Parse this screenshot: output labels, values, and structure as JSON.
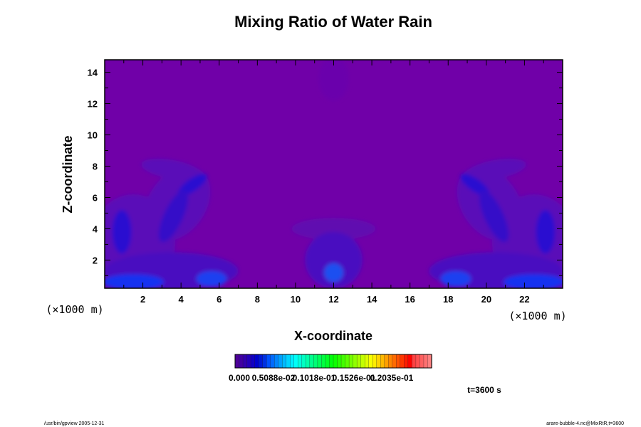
{
  "chart_data": {
    "type": "heatmap",
    "title": "Mixing Ratio of Water Rain",
    "xlabel": "X-coordinate",
    "ylabel": "Z-coordinate",
    "x_unit_label": "(×1000 m)",
    "y_unit_label": "(×1000 m)",
    "xlim": [
      0,
      24
    ],
    "ylim": [
      0.2,
      14.8
    ],
    "x_ticks": [
      2,
      4,
      6,
      8,
      10,
      12,
      14,
      16,
      18,
      20,
      22
    ],
    "y_ticks": [
      2,
      4,
      6,
      8,
      10,
      12,
      14
    ],
    "colorbar": {
      "labels": [
        "0.000",
        "0.5088e-02",
        "0.1018e-01",
        "0.1526e-01",
        "0.2035e-01"
      ],
      "min": 0.0,
      "max": 0.0254,
      "n_levels": 50
    },
    "background_color": "#7000a8",
    "time_label": "t=3600 s"
  },
  "footer": {
    "left": "/usr/bin/gpview 2005-12-31",
    "right": "arare-bubble-4.nc@MixRtR,t=3600"
  }
}
